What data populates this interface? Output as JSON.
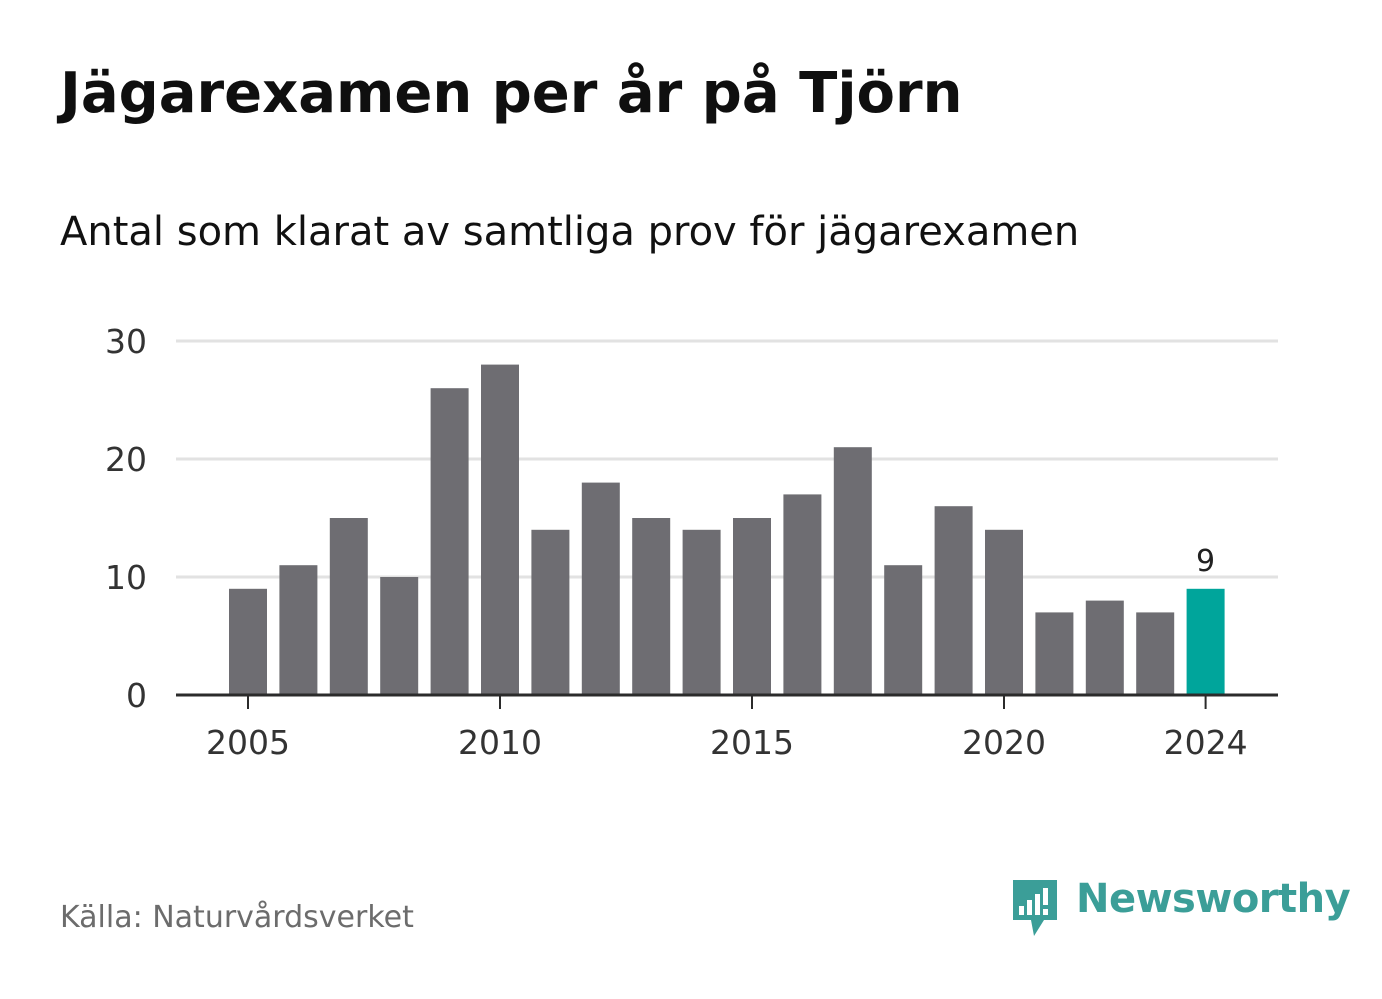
{
  "header": {
    "title": "Jägarexamen per år på Tjörn",
    "subtitle": "Antal som klarat av samtliga prov för jägarexamen"
  },
  "footer": {
    "source": "Källa: Naturvårdsverket",
    "brand": "Newsworthy",
    "brand_icon": "bar-chart-speech-bubble-icon"
  },
  "colors": {
    "bar": "#6e6d72",
    "highlight": "#00a59b",
    "gridline": "#e2e2e2",
    "baseline": "#2b2b2b",
    "brand": "#3b9e98"
  },
  "chart_data": {
    "type": "bar",
    "categories": [
      2005,
      2006,
      2007,
      2008,
      2009,
      2010,
      2011,
      2012,
      2013,
      2014,
      2015,
      2016,
      2017,
      2018,
      2019,
      2020,
      2021,
      2022,
      2023,
      2024
    ],
    "values": [
      9,
      11,
      15,
      10,
      26,
      28,
      14,
      18,
      15,
      14,
      15,
      17,
      21,
      11,
      16,
      14,
      7,
      8,
      7,
      9
    ],
    "highlight_category": 2024,
    "data_labels": [
      {
        "category": 2024,
        "text": "9"
      }
    ],
    "ylim": [
      0,
      30
    ],
    "yticks": [
      0,
      10,
      20,
      30
    ],
    "xticks": [
      2005,
      2010,
      2015,
      2020,
      2024
    ],
    "grid": true,
    "xlabel": "",
    "ylabel": ""
  }
}
